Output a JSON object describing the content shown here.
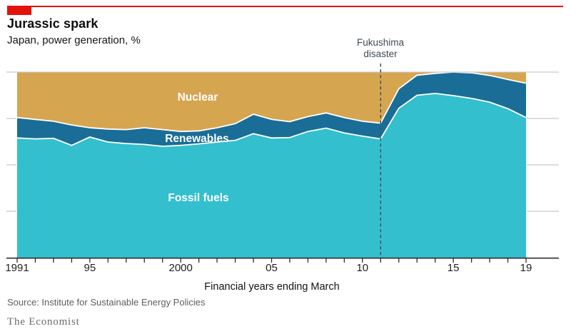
{
  "header": {
    "title": "Jurassic spark",
    "subtitle": "Japan, power generation, %"
  },
  "annotation": {
    "line1": "Fukushima",
    "line2": "disaster",
    "year": 2011
  },
  "chart_data": {
    "type": "area",
    "stacked": true,
    "title": "Jurassic spark",
    "subtitle": "Japan, power generation, %",
    "xlabel": "Financial years ending March",
    "ylabel": "%",
    "ylim": [
      0,
      100
    ],
    "grid": "right-stubs",
    "x": [
      1991,
      1992,
      1993,
      1994,
      1995,
      1996,
      1997,
      1998,
      1999,
      2000,
      2001,
      2002,
      2003,
      2004,
      2005,
      2006,
      2007,
      2008,
      2009,
      2010,
      2011,
      2012,
      2013,
      2014,
      2015,
      2016,
      2017,
      2018,
      2019
    ],
    "series": [
      {
        "name": "Fossil fuels",
        "color": "#33bfce",
        "values": [
          64.5,
          64.0,
          64.3,
          60.5,
          65.0,
          62.3,
          61.5,
          61.0,
          60.0,
          60.5,
          61.3,
          62.3,
          63.2,
          66.8,
          64.5,
          64.7,
          68.0,
          69.8,
          67.2,
          65.5,
          64.0,
          80.5,
          87.5,
          88.5,
          87.3,
          85.8,
          83.8,
          80.3,
          75.5
        ]
      },
      {
        "name": "Renewables",
        "color": "#1a6d96",
        "values": [
          11.0,
          10.5,
          9.2,
          11.0,
          5.0,
          7.0,
          7.5,
          9.0,
          9.0,
          7.5,
          7.0,
          7.7,
          9.0,
          10.5,
          10.0,
          8.6,
          8.0,
          8.2,
          8.3,
          8.0,
          8.5,
          10.5,
          10.8,
          10.8,
          12.7,
          13.8,
          14.4,
          15.7,
          18.5
        ]
      },
      {
        "name": "Nuclear",
        "color": "#d6a550",
        "values": [
          24.5,
          25.5,
          26.5,
          28.5,
          30.0,
          30.7,
          31.0,
          30.0,
          31.0,
          32.0,
          31.7,
          30.0,
          27.8,
          22.7,
          25.5,
          26.7,
          24.0,
          22.0,
          24.5,
          26.5,
          27.5,
          9.0,
          1.7,
          0.7,
          0.0,
          0.4,
          1.8,
          4.0,
          6.0
        ]
      }
    ],
    "yticks": [
      100,
      75,
      50,
      25,
      0
    ],
    "xtick_labels": [
      {
        "year": 1991,
        "label": "1991"
      },
      {
        "year": 1995,
        "label": "95"
      },
      {
        "year": 2000,
        "label": "2000"
      },
      {
        "year": 2005,
        "label": "05"
      },
      {
        "year": 2010,
        "label": "10"
      },
      {
        "year": 2015,
        "label": "15"
      },
      {
        "year": 2019,
        "label": "19"
      }
    ],
    "annotation": {
      "text": "Fukushima disaster",
      "x": 2011
    },
    "legend_position": "in-plot-labels"
  },
  "footer": {
    "source": "Source: Institute for Sustainable Energy Policies",
    "brand": "The Economist"
  },
  "colors": {
    "brand_red": "#e3120b",
    "fossil": "#33bfce",
    "renewables": "#1a6d96",
    "nuclear": "#d6a550",
    "boundary_stroke": "#ffffff",
    "gridline": "#c9c9c9",
    "axis": "#2f2f2f",
    "dashed_line": "#47525a"
  }
}
